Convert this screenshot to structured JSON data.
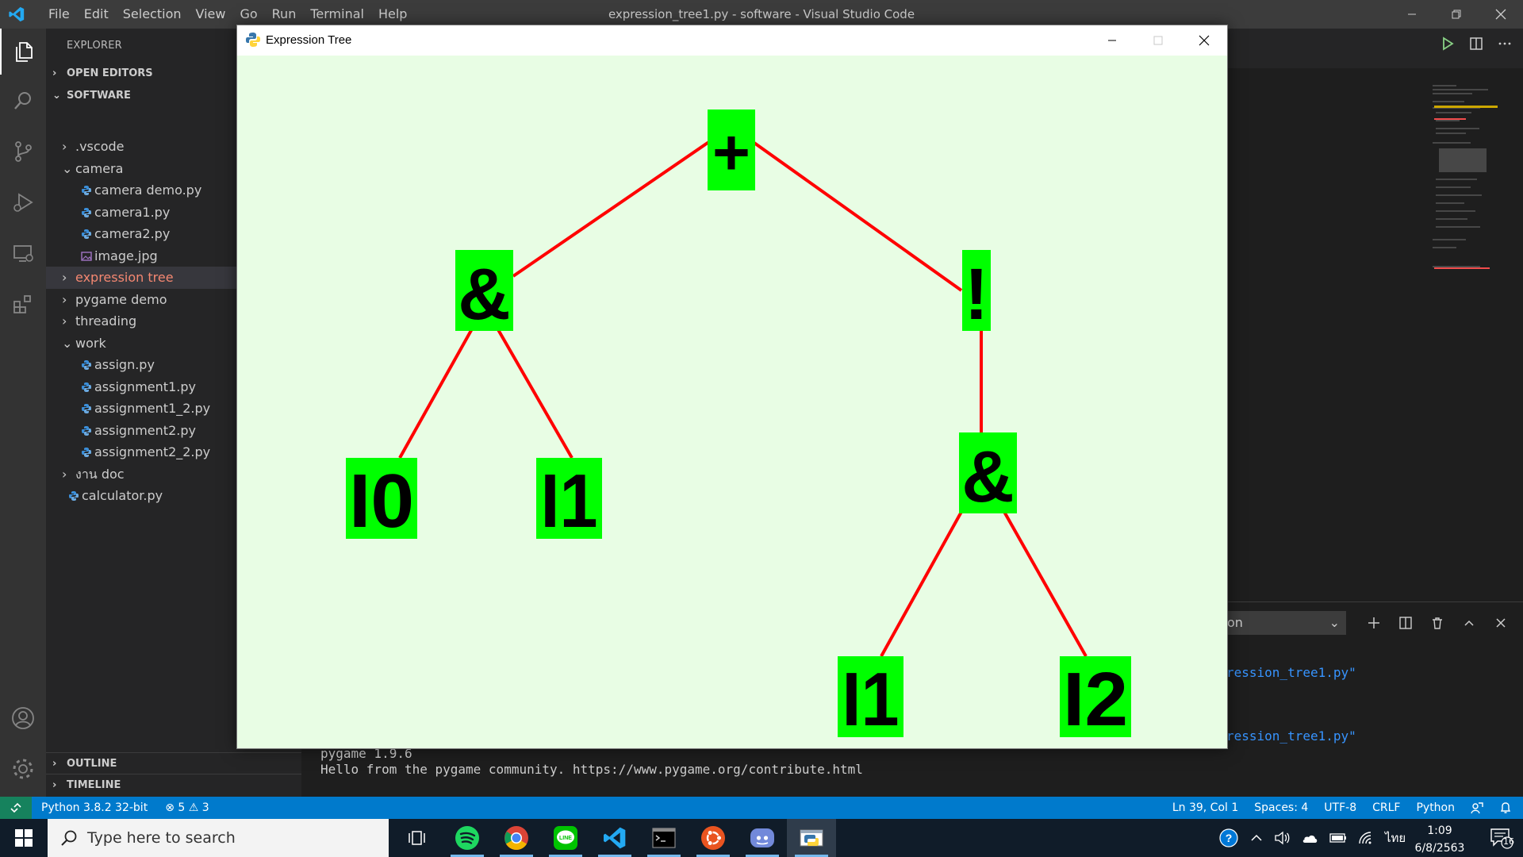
{
  "vscode": {
    "menu": [
      "File",
      "Edit",
      "Selection",
      "View",
      "Go",
      "Run",
      "Terminal",
      "Help"
    ],
    "window_title": "expression_tree1.py - software - Visual Studio Code",
    "sidebar": {
      "title": "EXPLORER",
      "open_editors": "OPEN EDITORS",
      "folder": "SOFTWARE",
      "tree": [
        {
          "label": ".vscode",
          "kind": "folder",
          "expanded": false
        },
        {
          "label": "camera",
          "kind": "folder",
          "expanded": true
        },
        {
          "label": "camera demo.py",
          "kind": "python"
        },
        {
          "label": "camera1.py",
          "kind": "python"
        },
        {
          "label": "camera2.py",
          "kind": "python"
        },
        {
          "label": "image.jpg",
          "kind": "image"
        },
        {
          "label": "expression tree",
          "kind": "folder",
          "expanded": false,
          "selected": true
        },
        {
          "label": "pygame demo",
          "kind": "folder",
          "expanded": false
        },
        {
          "label": "threading",
          "kind": "folder",
          "expanded": false
        },
        {
          "label": "work",
          "kind": "folder",
          "expanded": true
        },
        {
          "label": "assign.py",
          "kind": "python"
        },
        {
          "label": "assignment1.py",
          "kind": "python"
        },
        {
          "label": "assignment1_2.py",
          "kind": "python"
        },
        {
          "label": "assignment2.py",
          "kind": "python"
        },
        {
          "label": "assignment2_2.py",
          "kind": "python"
        },
        {
          "label": "งาน doc",
          "kind": "folder",
          "expanded": false
        },
        {
          "label": "calculator.py",
          "kind": "python"
        }
      ],
      "outline": "OUTLINE",
      "timeline": "TIMELINE"
    },
    "terminal": {
      "shell_select": "on",
      "lines": [
        "pygame 1.9.6",
        "Hello from the pygame community. https://www.pygame.org/contribute.html"
      ],
      "right_fragments": [
        "ression_tree1.py\"",
        "ression_tree1.py\""
      ]
    },
    "statusbar": {
      "interpreter": "Python 3.8.2 32-bit",
      "errors": "5",
      "warnings": "3",
      "position": "Ln 39, Col 1",
      "spaces": "Spaces: 4",
      "encoding": "UTF-8",
      "eol": "CRLF",
      "language": "Python"
    }
  },
  "pygame_window": {
    "title": "Expression Tree",
    "node_fill": "#00ff00",
    "edge_color": "#ff0000",
    "background": "#e8fde4",
    "nodes": [
      {
        "id": "root",
        "label": "+"
      },
      {
        "id": "and-left",
        "label": "&"
      },
      {
        "id": "not",
        "label": "!"
      },
      {
        "id": "i0",
        "label": "I0"
      },
      {
        "id": "i1-left",
        "label": "I1"
      },
      {
        "id": "and-right",
        "label": "&"
      },
      {
        "id": "i1-right",
        "label": "I1"
      },
      {
        "id": "i2",
        "label": "I2"
      }
    ]
  },
  "taskbar": {
    "search_placeholder": "Type here to search",
    "language": "ไทย",
    "time": "1:09",
    "date": "6/8/2563",
    "notifications": "16"
  }
}
